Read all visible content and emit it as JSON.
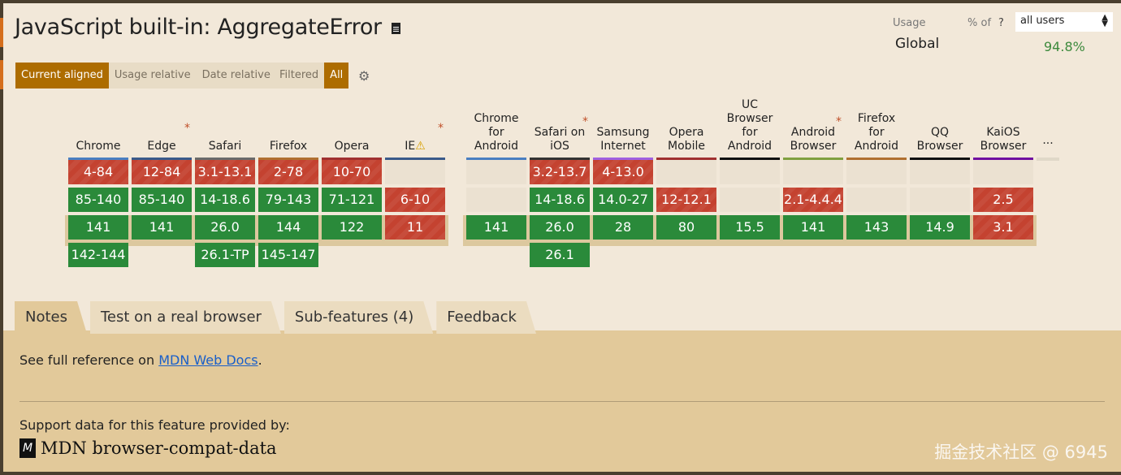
{
  "title": "JavaScript built-in: AggregateError",
  "view_modes": [
    "Current aligned",
    "Usage relative",
    "Date relative"
  ],
  "filter_modes": [
    "Filtered",
    "All"
  ],
  "usage": {
    "label": "Usage",
    "pct_of": "% of",
    "help": "?",
    "select_value": "all users",
    "region": "Global",
    "percent": "94.8%"
  },
  "desktop": [
    {
      "name": "Chrome",
      "color": "#4a7fc1",
      "cells": [
        [
          "4-84",
          "n"
        ],
        [
          "85-140",
          "y"
        ],
        [
          "141",
          "y"
        ],
        [
          "142-144",
          "y"
        ]
      ]
    },
    {
      "name": "Edge",
      "star": true,
      "color": "#3a5a8a",
      "cells": [
        [
          "12-84",
          "n"
        ],
        [
          "85-140",
          "y"
        ],
        [
          "141",
          "y"
        ]
      ]
    },
    {
      "name": "Safari",
      "color": "#6a6a6a",
      "cells": [
        [
          "3.1-13.1",
          "n"
        ],
        [
          "14-18.6",
          "y"
        ],
        [
          "26.0",
          "y"
        ],
        [
          "26.1-TP",
          "y"
        ]
      ]
    },
    {
      "name": "Firefox",
      "color": "#b07030",
      "cells": [
        [
          "2-78",
          "n"
        ],
        [
          "79-143",
          "y"
        ],
        [
          "144",
          "y"
        ],
        [
          "145-147",
          "y"
        ]
      ]
    },
    {
      "name": "Opera",
      "color": "#a03030",
      "cells": [
        [
          "10-70",
          "n"
        ],
        [
          "71-121",
          "y"
        ],
        [
          "122",
          "y"
        ]
      ]
    },
    {
      "name": "IE",
      "warn": true,
      "star": true,
      "color": "#3a5a8a",
      "cells": [
        [
          "",
          "e"
        ],
        [
          "6-10",
          "n"
        ],
        [
          "11",
          "n"
        ]
      ]
    }
  ],
  "mobile": [
    {
      "name": "Chrome for Android",
      "color": "#4a7fc1",
      "cells": [
        [
          "",
          "e"
        ],
        [
          "",
          "e"
        ],
        [
          "141",
          "y"
        ]
      ]
    },
    {
      "name": "Safari on iOS",
      "star": true,
      "color": "#333333",
      "cells": [
        [
          "3.2-13.7",
          "n"
        ],
        [
          "14-18.6",
          "y"
        ],
        [
          "26.0",
          "y"
        ],
        [
          "26.1",
          "y"
        ]
      ]
    },
    {
      "name": "Samsung Internet",
      "color": "#a060e0",
      "cells": [
        [
          "4-13.0",
          "n"
        ],
        [
          "14.0-27",
          "y"
        ],
        [
          "28",
          "y"
        ]
      ]
    },
    {
      "name": "Opera Mobile",
      "color": "#a03030",
      "cells": [
        [
          "",
          "e"
        ],
        [
          "12-12.1",
          "n"
        ],
        [
          "80",
          "y"
        ]
      ]
    },
    {
      "name": "UC Browser for Android",
      "color": "#111111",
      "cells": [
        [
          "",
          "e"
        ],
        [
          "",
          "e"
        ],
        [
          "15.5",
          "y"
        ]
      ]
    },
    {
      "name": "Android Browser",
      "star": true,
      "color": "#80a040",
      "cells": [
        [
          "",
          "e"
        ],
        [
          "2.1-4.4.4",
          "n"
        ],
        [
          "141",
          "y"
        ]
      ]
    },
    {
      "name": "Firefox for Android",
      "color": "#b07030",
      "cells": [
        [
          "",
          "e"
        ],
        [
          "",
          "e"
        ],
        [
          "143",
          "y"
        ]
      ]
    },
    {
      "name": "QQ Browser",
      "color": "#111111",
      "cells": [
        [
          "",
          "e"
        ],
        [
          "",
          "e"
        ],
        [
          "14.9",
          "y"
        ]
      ]
    },
    {
      "name": "KaiOS Browser",
      "color": "#7010a0",
      "cells": [
        [
          "",
          "e"
        ],
        [
          "2.5",
          "n"
        ],
        [
          "3.1",
          "n"
        ]
      ]
    }
  ],
  "more": "...",
  "tabs": [
    "Notes",
    "Test on a real browser",
    "Sub-features (4)",
    "Feedback"
  ],
  "notes": {
    "prefix": "See full reference on ",
    "link": "MDN Web Docs",
    "suffix": "."
  },
  "support_text": "Support data for this feature provided by:",
  "mdn_logo": "M",
  "mdn_name": "MDN browser-compat-data",
  "watermark": "掘金技术社区 @ 6945"
}
